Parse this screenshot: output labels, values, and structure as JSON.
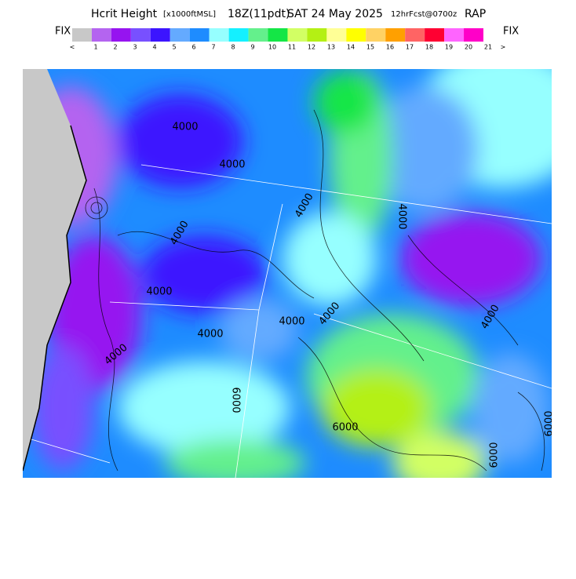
{
  "header": {
    "title_parts": [
      "Hcrit Height",
      "[x1000ftMSL]",
      "18Z(11pdt)",
      "SAT 24 May 2025",
      "12hrFcst@0700z",
      "RAP"
    ]
  },
  "legend": {
    "left_label": "FIX",
    "right_label": "FIX",
    "colors": [
      "#c8c8c8",
      "#b464f0",
      "#9614f0",
      "#7850ff",
      "#3c14ff",
      "#64aaff",
      "#1e8cff",
      "#96ffff",
      "#14f0ff",
      "#64f08c",
      "#14e646",
      "#d2ff64",
      "#b4f014",
      "#ffff96",
      "#ffff00",
      "#ffd264",
      "#ffa000",
      "#ff6464",
      "#ff0032",
      "#ff64ff",
      "#ff00c8"
    ],
    "low_label": "<",
    "high_label": ">",
    "tick_labels": [
      "1",
      "2",
      "3",
      "4",
      "5",
      "6",
      "7",
      "8",
      "9",
      "10",
      "11",
      "12",
      "13",
      "14",
      "15",
      "16",
      "17",
      "18",
      "19",
      "20",
      "21"
    ]
  },
  "map": {
    "contour_labels": [
      "4000",
      "4000",
      "4000",
      "4000",
      "4000",
      "4000",
      "4000",
      "4000",
      "4000",
      "4000",
      "4000",
      "6000",
      "6000",
      "6000",
      "6000"
    ]
  }
}
